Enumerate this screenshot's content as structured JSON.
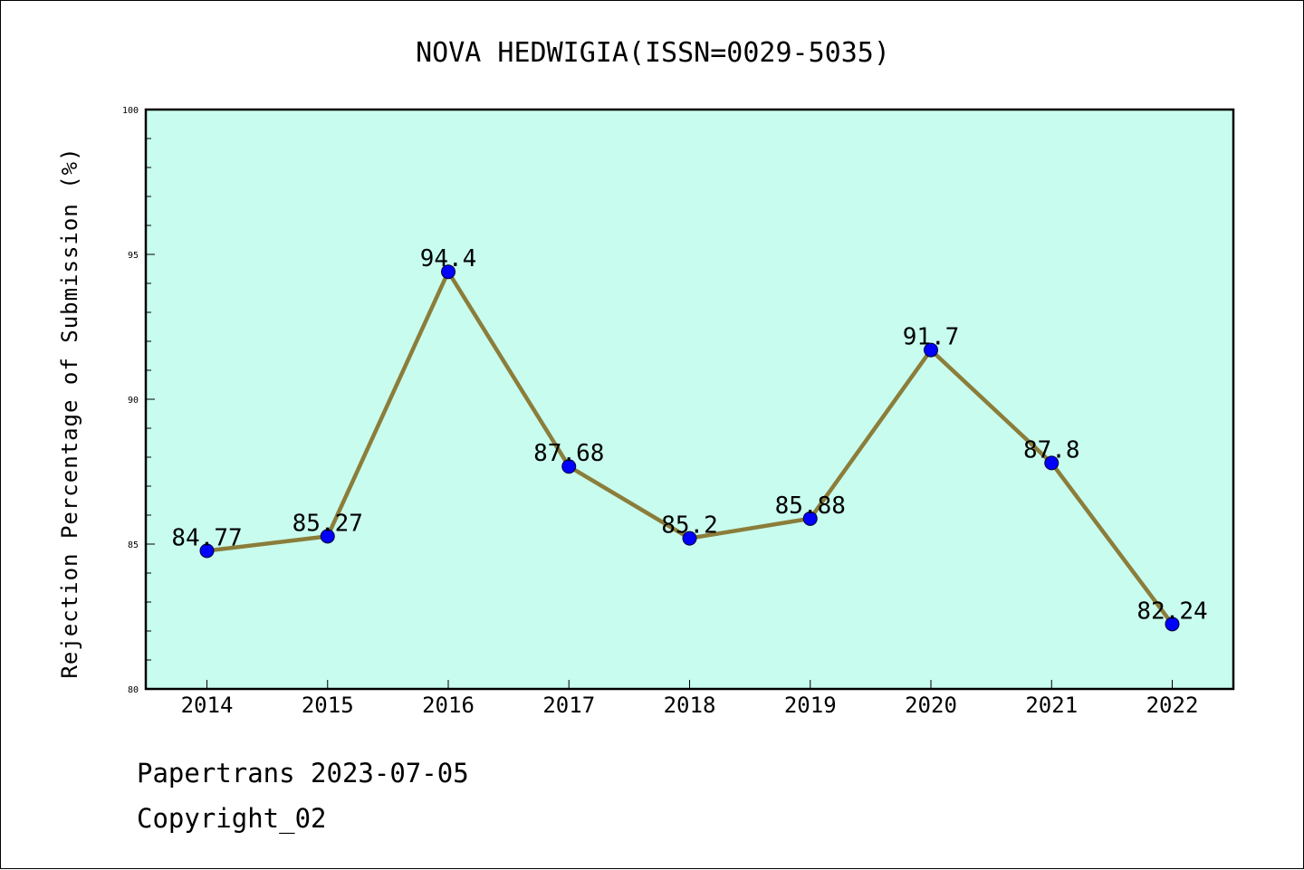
{
  "colors": {
    "plot_bg": "#c8fcee",
    "line": "#8b7d3a",
    "marker": "#0000ff"
  },
  "chart_data": {
    "type": "line",
    "title": "NOVA HEDWIGIA(ISSN=0029-5035)",
    "xlabel": "",
    "ylabel": "Rejection Percentage of Submission (%)",
    "categories": [
      "2014",
      "2015",
      "2016",
      "2017",
      "2018",
      "2019",
      "2020",
      "2021",
      "2022"
    ],
    "values": [
      84.77,
      85.27,
      94.4,
      87.68,
      85.2,
      85.88,
      91.7,
      87.8,
      82.24
    ],
    "data_labels": [
      "84.77",
      "85.27",
      "94.4",
      "87.68",
      "85.2",
      "85.88",
      "91.7",
      "87.8",
      "82.24"
    ],
    "ylim": [
      80,
      100
    ],
    "yticks": [
      "80",
      "85",
      "90",
      "95",
      "100"
    ],
    "grid": false,
    "legend": "none"
  },
  "footer": {
    "line1": "Papertrans 2023-07-05",
    "line2": "Copyright_02"
  }
}
